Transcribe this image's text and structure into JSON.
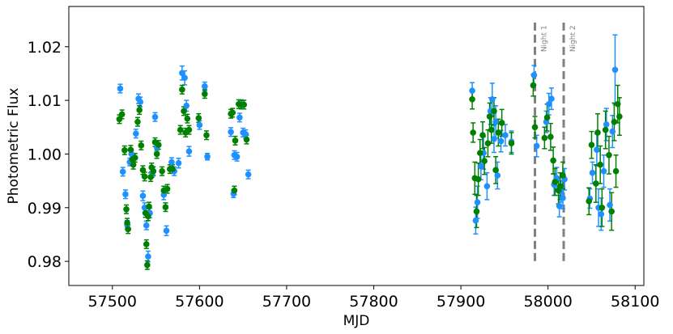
{
  "chart_data": {
    "type": "scatter",
    "title": "",
    "xlabel": "MJD",
    "ylabel": "Photometric Flux",
    "xlim": [
      57450,
      58110
    ],
    "ylim": [
      0.9755,
      1.0275
    ],
    "xticks": [
      57500,
      57600,
      57700,
      57800,
      57900,
      58000,
      58100
    ],
    "yticks": [
      0.98,
      0.99,
      1.0,
      1.01,
      1.02
    ],
    "ytick_labels": [
      "0.98",
      "0.99",
      "1.00",
      "1.01",
      "1.02"
    ],
    "grid": false,
    "legend": "none",
    "vlines": [
      {
        "x": 57985,
        "label": "Night 1",
        "color": "#808080",
        "style": "dashed"
      },
      {
        "x": 58018,
        "label": "Night 2",
        "color": "#808080",
        "style": "dashed"
      }
    ],
    "series": [
      {
        "color": "#1e90ff",
        "points": [
          [
            57509,
            1.0122,
            0.0008
          ],
          [
            57512,
            0.9967,
            0.0008
          ],
          [
            57515,
            0.9925,
            0.0008
          ],
          [
            57517,
            0.9868,
            0.0008
          ],
          [
            57520,
            0.9985,
            0.0007
          ],
          [
            57522,
            1.0,
            0.0007
          ],
          [
            57527,
            1.0038,
            0.0008
          ],
          [
            57530,
            1.0103,
            0.0009
          ],
          [
            57532,
            1.0097,
            0.0009
          ],
          [
            57535,
            0.9922,
            0.0009
          ],
          [
            57537,
            0.99,
            0.0009
          ],
          [
            57539,
            0.9867,
            0.0008
          ],
          [
            57541,
            0.9809,
            0.001
          ],
          [
            57543,
            0.989,
            0.0009
          ],
          [
            57546,
            0.9965,
            0.0008
          ],
          [
            57549,
            1.0069,
            0.0008
          ],
          [
            57551,
            1.0013,
            0.0008
          ],
          [
            57559,
            0.9924,
            0.0009
          ],
          [
            57562,
            0.9857,
            0.0009
          ],
          [
            57568,
            0.9985,
            0.0008
          ],
          [
            57571,
            0.9968,
            0.0008
          ],
          [
            57576,
            0.9983,
            0.0009
          ],
          [
            57580,
            1.0151,
            0.0013
          ],
          [
            57583,
            1.0142,
            0.0013
          ],
          [
            57585,
            1.009,
            0.001
          ],
          [
            57588,
            1.0005,
            0.0009
          ],
          [
            57600,
            1.0054,
            0.0008
          ],
          [
            57606,
            1.0126,
            0.0008
          ],
          [
            57609,
            0.9995,
            0.0006
          ],
          [
            57636,
            1.0041,
            0.0008
          ],
          [
            57639,
            0.9926,
            0.0007
          ],
          [
            57640,
            0.9998,
            0.0008
          ],
          [
            57643,
            0.9995,
            0.0008
          ],
          [
            57646,
            1.0068,
            0.0008
          ],
          [
            57648,
            1.0093,
            0.0008
          ],
          [
            57650,
            1.004,
            0.0008
          ],
          [
            57653,
            1.0037,
            0.0008
          ],
          [
            57656,
            0.9962,
            0.0008
          ],
          [
            57913,
            1.0118,
            0.0015
          ],
          [
            57917,
            0.9876,
            0.0025
          ],
          [
            57919,
            0.991,
            0.003
          ],
          [
            57923,
            0.9977,
            0.0025
          ],
          [
            57926,
            1.0002,
            0.003
          ],
          [
            57930,
            0.994,
            0.0025
          ],
          [
            57934,
            1.008,
            0.0025
          ],
          [
            57936,
            1.0102,
            0.003
          ],
          [
            57938,
            1.0028,
            0.0025
          ],
          [
            57940,
            1.006,
            0.003
          ],
          [
            57942,
            0.996,
            0.0025
          ],
          [
            57946,
            1.0024,
            0.002
          ],
          [
            57951,
            1.0035,
            0.002
          ],
          [
            57958,
            1.0023,
            0.002
          ],
          [
            57984,
            1.0147,
            0.0018
          ],
          [
            57987,
            1.0015,
            0.002
          ],
          [
            57998,
            1.006,
            0.002
          ],
          [
            58001,
            1.0093,
            0.002
          ],
          [
            58004,
            1.0103,
            0.002
          ],
          [
            58007,
            0.9943,
            0.002
          ],
          [
            58010,
            0.9955,
            0.002
          ],
          [
            58013,
            0.9903,
            0.002
          ],
          [
            58015,
            0.993,
            0.002
          ],
          [
            58017,
            0.9918,
            0.002
          ],
          [
            58019,
            0.9953,
            0.002
          ],
          [
            58048,
            0.9917,
            0.0018
          ],
          [
            58051,
            0.9965,
            0.002
          ],
          [
            58056,
            1.0008,
            0.003
          ],
          [
            58058,
            0.99,
            0.0035
          ],
          [
            58061,
            0.9888,
            0.003
          ],
          [
            58064,
            0.9968,
            0.003
          ],
          [
            58067,
            1.0055,
            0.003
          ],
          [
            58071,
            0.9905,
            0.003
          ],
          [
            58074,
            1.0042,
            0.003
          ],
          [
            58077,
            1.0157,
            0.0065
          ]
        ]
      },
      {
        "color": "#008000",
        "points": [
          [
            57508,
            1.0065,
            0.0008
          ],
          [
            57511,
            1.0074,
            0.0008
          ],
          [
            57514,
            1.0007,
            0.0008
          ],
          [
            57516,
            0.9897,
            0.0008
          ],
          [
            57517,
            0.9872,
            0.0008
          ],
          [
            57518,
            0.986,
            0.0008
          ],
          [
            57521,
            1.0008,
            0.0008
          ],
          [
            57523,
            0.999,
            0.0008
          ],
          [
            57524,
            0.998,
            0.0008
          ],
          [
            57526,
            0.9993,
            0.0008
          ],
          [
            57529,
            1.006,
            0.0008
          ],
          [
            57531,
            1.0082,
            0.0008
          ],
          [
            57533,
            1.0016,
            0.0008
          ],
          [
            57535,
            0.997,
            0.0008
          ],
          [
            57537,
            0.9958,
            0.0008
          ],
          [
            57538,
            0.989,
            0.0008
          ],
          [
            57539,
            0.9832,
            0.0008
          ],
          [
            57540,
            0.9793,
            0.0008
          ],
          [
            57541,
            0.9884,
            0.0008
          ],
          [
            57542,
            0.9902,
            0.0008
          ],
          [
            57544,
            0.9957,
            0.0008
          ],
          [
            57545,
            0.9975,
            0.0008
          ],
          [
            57547,
            0.9968,
            0.0008
          ],
          [
            57549,
            1.0022,
            0.0008
          ],
          [
            57551,
            1.0,
            0.0008
          ],
          [
            57553,
            1.0017,
            0.0008
          ],
          [
            57557,
            0.9968,
            0.0008
          ],
          [
            57559,
            0.9932,
            0.0008
          ],
          [
            57561,
            0.9901,
            0.0008
          ],
          [
            57563,
            0.9935,
            0.0008
          ],
          [
            57566,
            0.9972,
            0.0008
          ],
          [
            57569,
            0.9972,
            0.0008
          ],
          [
            57578,
            1.0045,
            0.0008
          ],
          [
            57580,
            1.012,
            0.0008
          ],
          [
            57582,
            1.008,
            0.0008
          ],
          [
            57584,
            1.004,
            0.0008
          ],
          [
            57586,
            1.0066,
            0.0008
          ],
          [
            57588,
            1.0045,
            0.0008
          ],
          [
            57599,
            1.0067,
            0.0008
          ],
          [
            57606,
            1.0112,
            0.0008
          ],
          [
            57608,
            1.0035,
            0.0008
          ],
          [
            57636,
            1.0075,
            0.0008
          ],
          [
            57638,
            1.0077,
            0.0008
          ],
          [
            57640,
            0.9932,
            0.0008
          ],
          [
            57641,
            1.0025,
            0.0008
          ],
          [
            57645,
            1.0093,
            0.0008
          ],
          [
            57648,
            1.0092,
            0.0008
          ],
          [
            57651,
            1.0092,
            0.0008
          ],
          [
            57654,
            1.0027,
            0.0008
          ],
          [
            57913,
            1.0102,
            0.0018
          ],
          [
            57914,
            1.004,
            0.0018
          ],
          [
            57916,
            0.9955,
            0.003
          ],
          [
            57918,
            0.9893,
            0.003
          ],
          [
            57920,
            0.9953,
            0.003
          ],
          [
            57922,
            1.0002,
            0.0025
          ],
          [
            57925,
            1.0035,
            0.0025
          ],
          [
            57927,
            0.9987,
            0.0025
          ],
          [
            57931,
            1.002,
            0.0025
          ],
          [
            57933,
            1.007,
            0.0025
          ],
          [
            57935,
            1.0045,
            0.0025
          ],
          [
            57938,
            1.008,
            0.0025
          ],
          [
            57940,
            0.997,
            0.0025
          ],
          [
            57943,
            1.004,
            0.0025
          ],
          [
            57947,
            1.0058,
            0.0025
          ],
          [
            57958,
            1.002,
            0.002
          ],
          [
            57983,
            1.0128,
            0.002
          ],
          [
            57985,
            1.005,
            0.002
          ],
          [
            57996,
            1.003,
            0.002
          ],
          [
            57999,
            1.0068,
            0.0025
          ],
          [
            58003,
            1.0032,
            0.0025
          ],
          [
            58006,
            0.9988,
            0.0025
          ],
          [
            58008,
            0.9948,
            0.0025
          ],
          [
            58012,
            0.9932,
            0.0025
          ],
          [
            58014,
            0.994,
            0.0025
          ],
          [
            58017,
            0.996,
            0.0025
          ],
          [
            58047,
            0.9912,
            0.0025
          ],
          [
            58050,
            1.0017,
            0.0025
          ],
          [
            58055,
            0.9945,
            0.0035
          ],
          [
            58057,
            1.004,
            0.0035
          ],
          [
            58060,
            0.998,
            0.0035
          ],
          [
            58062,
            0.99,
            0.0035
          ],
          [
            58066,
            1.0045,
            0.0035
          ],
          [
            58070,
            0.9998,
            0.0035
          ],
          [
            58073,
            0.9893,
            0.0035
          ],
          [
            58076,
            1.006,
            0.0035
          ],
          [
            58078,
            0.9968,
            0.003
          ],
          [
            58080,
            1.0093,
            0.0035
          ],
          [
            58082,
            1.007,
            0.0035
          ]
        ]
      }
    ]
  }
}
